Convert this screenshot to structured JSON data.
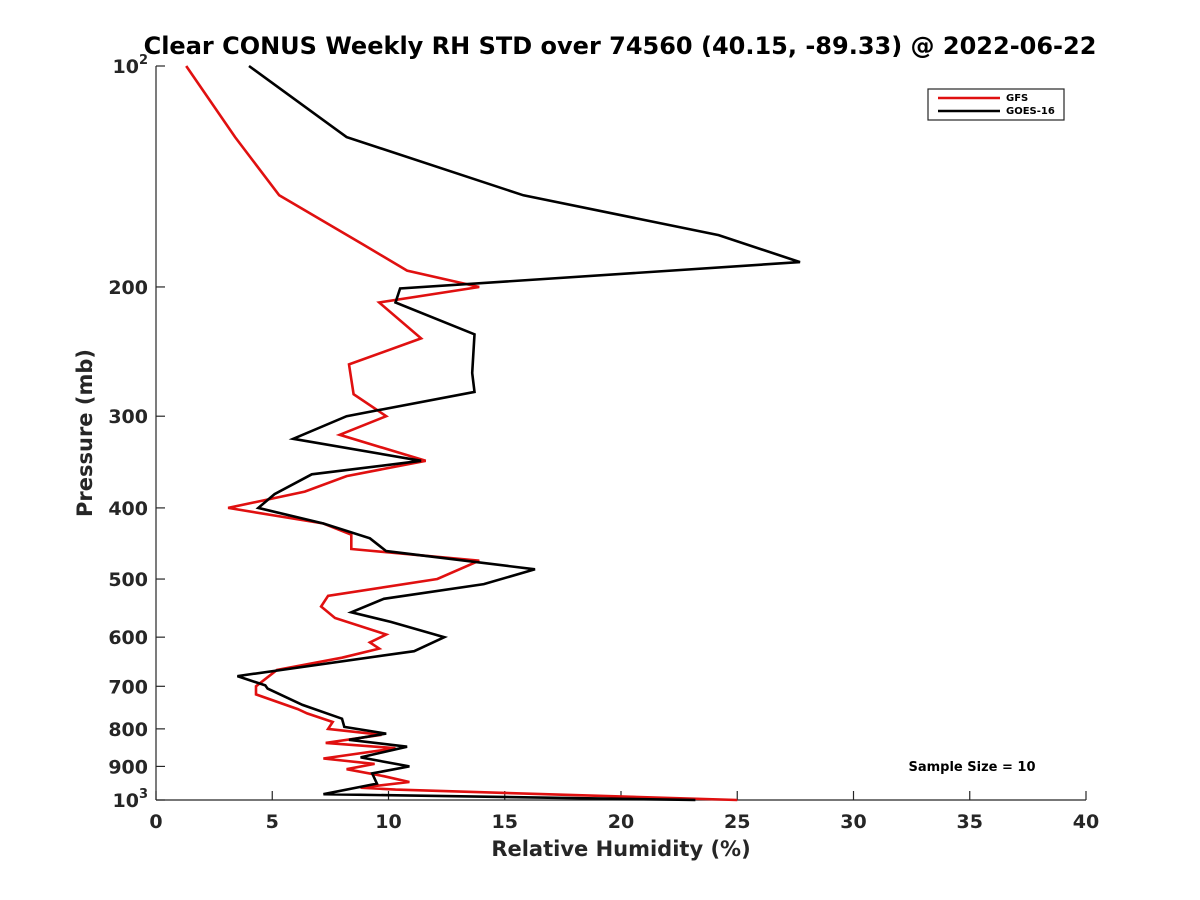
{
  "chart_data": {
    "type": "line",
    "title": "Clear CONUS Weekly RH STD over 74560 (40.15, -89.33) @ 2022-06-22",
    "xlabel": "Relative Humidity (%)",
    "ylabel": "Pressure (mb)",
    "xlim": [
      0,
      40
    ],
    "ylim": [
      100,
      1000
    ],
    "y_scale": "log",
    "y_reversed": true,
    "grid": false,
    "legend_position": "top-right",
    "x_ticks": [
      "0",
      "5",
      "10",
      "15",
      "20",
      "25",
      "30",
      "35",
      "40"
    ],
    "y_ticks": [
      {
        "value": 100,
        "label": "10",
        "sup": "2"
      },
      {
        "value": 200,
        "label": "200"
      },
      {
        "value": 300,
        "label": "300"
      },
      {
        "value": 400,
        "label": "400"
      },
      {
        "value": 500,
        "label": "500"
      },
      {
        "value": 600,
        "label": "600"
      },
      {
        "value": 700,
        "label": "700"
      },
      {
        "value": 800,
        "label": "800"
      },
      {
        "value": 900,
        "label": "900"
      },
      {
        "value": 1000,
        "label": "10",
        "sup": "3"
      }
    ],
    "series": [
      {
        "name": "GFS",
        "color": "#e01010",
        "points": [
          [
            1.3,
            100
          ],
          [
            3.4,
            125
          ],
          [
            5.3,
            150
          ],
          [
            8.9,
            175
          ],
          [
            10.8,
            190
          ],
          [
            13.9,
            200
          ],
          [
            9.6,
            210
          ],
          [
            11.4,
            235
          ],
          [
            8.3,
            255
          ],
          [
            8.5,
            280
          ],
          [
            9.9,
            300
          ],
          [
            7.9,
            318
          ],
          [
            11.6,
            345
          ],
          [
            8.2,
            362
          ],
          [
            6.4,
            380
          ],
          [
            3.1,
            400
          ],
          [
            7.2,
            420
          ],
          [
            8.4,
            435
          ],
          [
            8.4,
            455
          ],
          [
            13.9,
            472
          ],
          [
            12.1,
            500
          ],
          [
            7.4,
            527
          ],
          [
            7.1,
            545
          ],
          [
            7.7,
            565
          ],
          [
            9.9,
            595
          ],
          [
            9.2,
            610
          ],
          [
            9.6,
            622
          ],
          [
            8.0,
            640
          ],
          [
            5.2,
            665
          ],
          [
            4.3,
            700
          ],
          [
            4.3,
            718
          ],
          [
            6.1,
            752
          ],
          [
            6.5,
            762
          ],
          [
            7.6,
            783
          ],
          [
            7.4,
            800
          ],
          [
            9.7,
            815
          ],
          [
            7.3,
            836
          ],
          [
            10.3,
            850
          ],
          [
            7.2,
            878
          ],
          [
            9.4,
            893
          ],
          [
            8.2,
            908
          ],
          [
            9.8,
            928
          ],
          [
            10.9,
            945
          ],
          [
            8.8,
            962
          ],
          [
            10.3,
            968
          ],
          [
            25.0,
            1000
          ]
        ]
      },
      {
        "name": "GOES-16",
        "color": "#000000",
        "points": [
          [
            4.0,
            100
          ],
          [
            8.2,
            125
          ],
          [
            15.8,
            150
          ],
          [
            24.2,
            170
          ],
          [
            27.7,
            185
          ],
          [
            10.5,
            201
          ],
          [
            10.3,
            210
          ],
          [
            13.7,
            232
          ],
          [
            13.6,
            262
          ],
          [
            13.7,
            278
          ],
          [
            8.2,
            300
          ],
          [
            5.9,
            322
          ],
          [
            11.4,
            345
          ],
          [
            6.7,
            360
          ],
          [
            5.1,
            383
          ],
          [
            4.4,
            400
          ],
          [
            7.2,
            420
          ],
          [
            9.2,
            440
          ],
          [
            9.9,
            458
          ],
          [
            16.3,
            485
          ],
          [
            14.1,
            508
          ],
          [
            9.8,
            532
          ],
          [
            8.4,
            555
          ],
          [
            10.1,
            572
          ],
          [
            12.4,
            600
          ],
          [
            11.1,
            627
          ],
          [
            3.5,
            678
          ],
          [
            4.7,
            698
          ],
          [
            4.8,
            705
          ],
          [
            6.3,
            742
          ],
          [
            8.0,
            775
          ],
          [
            8.1,
            795
          ],
          [
            9.9,
            812
          ],
          [
            8.3,
            828
          ],
          [
            10.8,
            846
          ],
          [
            8.8,
            875
          ],
          [
            10.9,
            900
          ],
          [
            9.3,
            920
          ],
          [
            9.5,
            950
          ],
          [
            7.2,
            982
          ],
          [
            23.2,
            1000
          ]
        ]
      }
    ],
    "annotation": "Sample Size = 10"
  }
}
